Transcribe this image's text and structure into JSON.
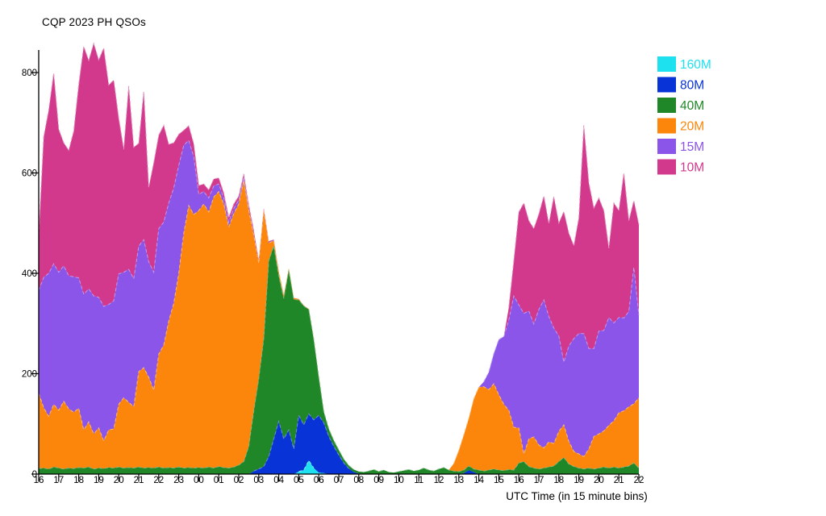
{
  "title": "CQP 2023 PH QSOs",
  "xlabel": "UTC Time (in 15 minute bins)",
  "chart_data": {
    "type": "area",
    "stacked": true,
    "title": "CQP 2023 PH QSOs",
    "xlabel": "UTC Time (in 15 minute bins)",
    "x_unit": "15-minute bins, 16:00 UTC day 1 through 22:00 UTC day 2",
    "x_tick_labels": [
      "16",
      "17",
      "18",
      "19",
      "20",
      "21",
      "22",
      "23",
      "00",
      "01",
      "02",
      "03",
      "04",
      "05",
      "06",
      "07",
      "08",
      "09",
      "10",
      "11",
      "12",
      "13",
      "14",
      "15",
      "16",
      "17",
      "18",
      "19",
      "20",
      "21",
      "22"
    ],
    "y_ticks": [
      0,
      200,
      400,
      600,
      800
    ],
    "ylim": [
      0,
      845
    ],
    "grid": false,
    "legend_position": "upper right",
    "series": [
      {
        "name": "160M",
        "color": "#1EE1EF",
        "values": [
          0,
          0,
          0,
          0,
          0,
          0,
          0,
          0,
          0,
          0,
          0,
          0,
          0,
          0,
          0,
          0,
          0,
          0,
          0,
          0,
          0,
          0,
          0,
          0,
          0,
          0,
          0,
          0,
          0,
          0,
          0,
          0,
          0,
          0,
          0,
          0,
          0,
          0,
          0,
          0,
          0,
          0,
          0,
          0,
          0,
          0,
          0,
          0,
          0,
          0,
          0,
          0,
          5,
          8,
          27,
          12,
          3,
          2,
          0,
          0,
          0,
          0,
          0,
          0,
          0,
          0,
          0,
          0,
          0,
          0,
          0,
          0,
          0,
          0,
          0,
          0,
          0,
          0,
          0,
          0,
          0,
          0,
          0,
          0,
          0,
          0,
          0,
          0,
          0,
          0,
          0,
          0,
          0,
          0,
          0,
          0,
          0,
          0,
          0,
          0,
          0,
          0,
          0,
          0,
          0,
          0,
          0,
          0,
          0,
          0,
          0,
          0,
          0,
          0,
          0,
          0,
          0,
          0,
          0,
          0,
          0
        ]
      },
      {
        "name": "80M",
        "color": "#0833D6",
        "values": [
          0,
          0,
          0,
          0,
          0,
          0,
          0,
          0,
          0,
          0,
          0,
          0,
          0,
          0,
          0,
          0,
          0,
          0,
          0,
          0,
          0,
          0,
          0,
          0,
          0,
          0,
          0,
          0,
          0,
          0,
          0,
          0,
          0,
          0,
          0,
          0,
          0,
          0,
          0,
          0,
          0,
          0,
          0,
          6,
          10,
          15,
          35,
          70,
          105,
          70,
          88,
          50,
          112,
          90,
          93,
          96,
          114,
          100,
          75,
          55,
          38,
          22,
          11,
          4,
          1,
          0,
          0,
          0,
          0,
          0,
          0,
          0,
          0,
          0,
          0,
          0,
          0,
          0,
          0,
          0,
          0,
          0,
          0,
          0,
          0,
          2,
          8,
          4,
          0,
          0,
          0,
          0,
          0,
          0,
          0,
          0,
          0,
          0,
          0,
          0,
          0,
          0,
          0,
          0,
          0,
          0,
          0,
          0,
          0,
          0,
          0,
          0,
          0,
          0,
          0,
          0,
          0,
          0,
          0,
          0,
          0
        ]
      },
      {
        "name": "40M",
        "color": "#1F8727",
        "values": [
          11,
          12,
          10,
          14,
          12,
          10,
          12,
          11,
          13,
          12,
          14,
          10,
          12,
          11,
          13,
          12,
          14,
          12,
          13,
          12,
          14,
          12,
          13,
          12,
          14,
          12,
          13,
          12,
          14,
          12,
          13,
          12,
          13,
          12,
          14,
          12,
          15,
          13,
          12,
          14,
          18,
          25,
          55,
          120,
          180,
          255,
          390,
          385,
          290,
          280,
          318,
          298,
          230,
          237,
          208,
          160,
          76,
          22,
          15,
          12,
          10,
          8,
          6,
          5,
          4,
          4,
          6,
          9,
          5,
          8,
          4,
          3,
          5,
          7,
          9,
          6,
          8,
          12,
          8,
          6,
          10,
          13,
          8,
          6,
          5,
          6,
          8,
          6,
          8,
          6,
          8,
          10,
          8,
          7,
          9,
          8,
          22,
          25,
          15,
          12,
          10,
          12,
          14,
          16,
          25,
          33,
          20,
          15,
          12,
          10,
          12,
          10,
          12,
          14,
          12,
          14,
          12,
          14,
          16,
          22,
          12
        ]
      },
      {
        "name": "20M",
        "color": "#FB860B",
        "values": [
          150,
          120,
          105,
          125,
          115,
          135,
          118,
          112,
          118,
          76,
          90,
          70,
          80,
          55,
          75,
          78,
          125,
          140,
          130,
          122,
          190,
          200,
          180,
          155,
          225,
          245,
          292,
          328,
          386,
          468,
          522,
          505,
          512,
          526,
          508,
          540,
          548,
          525,
          480,
          505,
          520,
          560,
          470,
          350,
          230,
          255,
          35,
          10,
          8,
          6,
          4,
          3,
          2,
          1,
          1,
          1,
          1,
          0,
          0,
          0,
          0,
          0,
          0,
          0,
          0,
          0,
          0,
          0,
          0,
          0,
          0,
          0,
          0,
          0,
          0,
          0,
          0,
          0,
          0,
          0,
          0,
          0,
          0,
          15,
          42,
          70,
          95,
          140,
          165,
          168,
          160,
          170,
          150,
          132,
          118,
          85,
          70,
          15,
          55,
          62,
          48,
          40,
          50,
          45,
          60,
          65,
          45,
          30,
          28,
          25,
          38,
          65,
          68,
          72,
          85,
          92,
          110,
          112,
          118,
          118,
          140
        ]
      },
      {
        "name": "15M",
        "color": "#8A55E8",
        "values": [
          205,
          260,
          285,
          280,
          275,
          270,
          265,
          270,
          260,
          270,
          265,
          275,
          260,
          268,
          250,
          255,
          260,
          250,
          265,
          255,
          250,
          255,
          230,
          235,
          250,
          245,
          235,
          230,
          215,
          175,
          130,
          115,
          32,
          25,
          28,
          22,
          15,
          12,
          10,
          10,
          8,
          6,
          5,
          4,
          3,
          2,
          2,
          1,
          0,
          0,
          0,
          0,
          0,
          0,
          0,
          0,
          0,
          0,
          0,
          0,
          0,
          0,
          0,
          0,
          0,
          0,
          0,
          0,
          0,
          0,
          0,
          0,
          0,
          0,
          0,
          0,
          0,
          0,
          0,
          0,
          0,
          0,
          0,
          0,
          0,
          0,
          0,
          0,
          0,
          10,
          35,
          60,
          110,
          135,
          180,
          262,
          245,
          280,
          255,
          225,
          270,
          295,
          250,
          230,
          190,
          125,
          190,
          225,
          240,
          245,
          200,
          175,
          205,
          200,
          215,
          195,
          190,
          185,
          190,
          272,
          165
        ]
      },
      {
        "name": "10M",
        "color": "#D2398C",
        "values": [
          110,
          280,
          325,
          380,
          285,
          245,
          250,
          290,
          385,
          494,
          455,
          503,
          473,
          515,
          437,
          440,
          310,
          245,
          365,
          262,
          205,
          295,
          148,
          218,
          186,
          193,
          117,
          90,
          62,
          30,
          29,
          26,
          18,
          15,
          16,
          14,
          12,
          10,
          9,
          9,
          8,
          7,
          6,
          5,
          4,
          3,
          2,
          1,
          0,
          0,
          0,
          0,
          0,
          0,
          0,
          0,
          0,
          0,
          0,
          0,
          0,
          0,
          0,
          0,
          0,
          0,
          0,
          0,
          0,
          0,
          0,
          0,
          0,
          0,
          0,
          0,
          0,
          0,
          0,
          0,
          0,
          0,
          0,
          0,
          0,
          0,
          0,
          0,
          0,
          0,
          0,
          0,
          0,
          0,
          25,
          70,
          185,
          220,
          180,
          190,
          190,
          207,
          185,
          262,
          225,
          300,
          225,
          185,
          230,
          415,
          330,
          280,
          265,
          239,
          138,
          239,
          213,
          289,
          181,
          133,
          180
        ]
      }
    ]
  }
}
